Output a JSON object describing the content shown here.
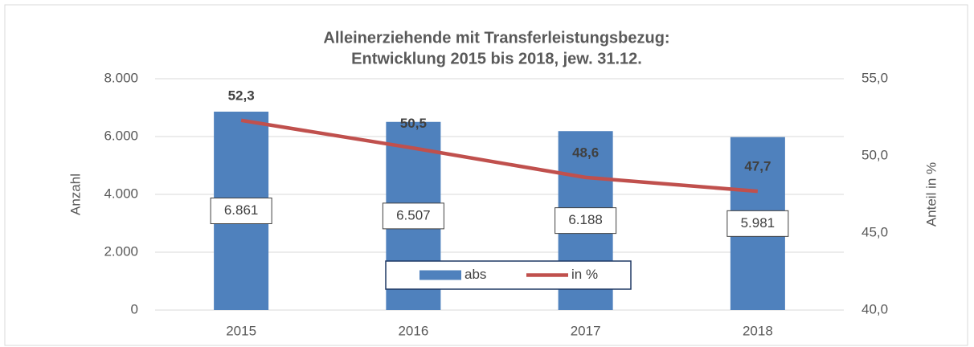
{
  "chart_data": {
    "type": "bar",
    "title": "Alleinerziehende mit Transferleistungsbezug:",
    "subtitle": "Entwicklung 2015 bis 2018, jew. 31.12.",
    "categories": [
      "2015",
      "2016",
      "2017",
      "2018"
    ],
    "series": [
      {
        "name": "abs",
        "type": "bar",
        "color": "#4f81bd",
        "values": [
          6861,
          6507,
          6188,
          5981
        ],
        "value_labels": [
          "6.861",
          "6.507",
          "6.188",
          "5.981"
        ]
      },
      {
        "name": "in %",
        "type": "line",
        "axis": "y2",
        "color": "#c0504d",
        "values": [
          52.3,
          50.5,
          48.6,
          47.7
        ],
        "value_labels": [
          "52,3",
          "50,5",
          "48,6",
          "47,7"
        ]
      }
    ],
    "ylabel": "Anzahl",
    "y2label": "Anteil in %",
    "ylim": [
      0,
      8000
    ],
    "yticks": [
      0,
      {
        "value": 2000,
        "label": "2.000"
      },
      {
        "value": 4000,
        "label": "4.000"
      },
      {
        "value": 6000,
        "label": "6.000"
      },
      {
        "value": 8000,
        "label": "8.000"
      }
    ],
    "y2lim": [
      40,
      55
    ],
    "y2ticks": [
      {
        "value": 40,
        "label": "40,0"
      },
      {
        "value": 45,
        "label": "45,0"
      },
      {
        "value": 50,
        "label": "50,0"
      },
      {
        "value": 55,
        "label": "55,0"
      }
    ],
    "grid": true,
    "legend": "bottom"
  }
}
